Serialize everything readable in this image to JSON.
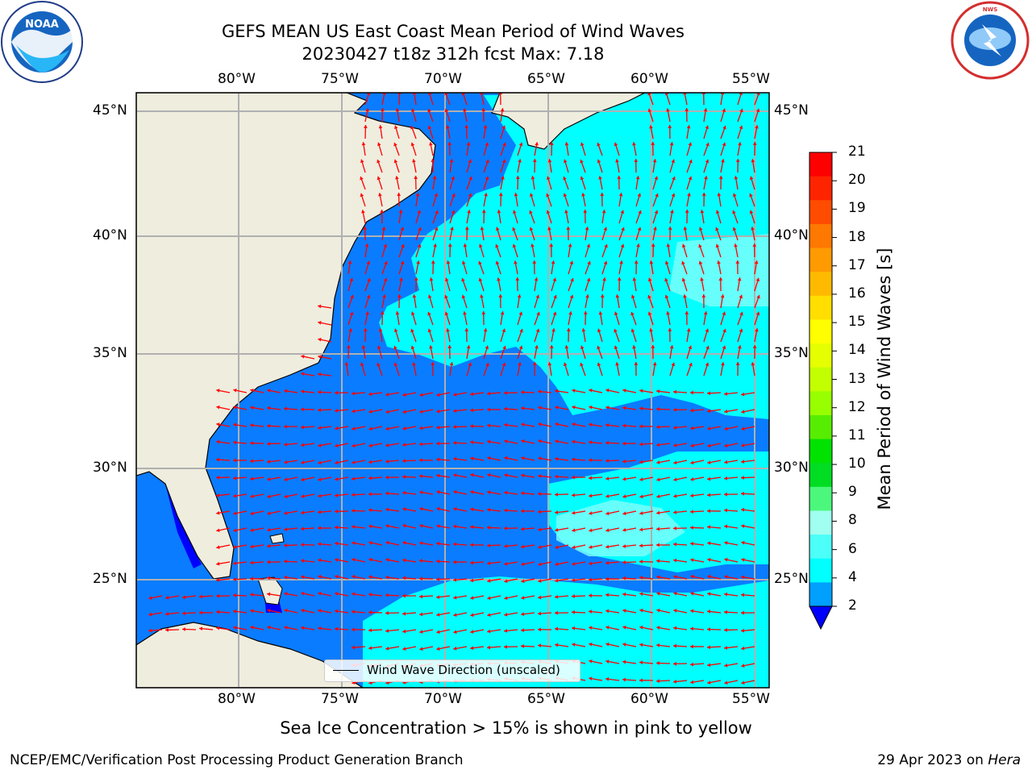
{
  "title": {
    "line1": "GEFS MEAN US East Coast Mean Period of Wind Waves",
    "line2": "20230427 t18z 312h fcst   Max: 7.18"
  },
  "map": {
    "lon_ticks": [
      "80°W",
      "75°W",
      "70°W",
      "65°W",
      "60°W",
      "55°W"
    ],
    "lat_ticks": [
      "45°N",
      "40°N",
      "35°N",
      "30°N",
      "25°N"
    ],
    "land_color": "#efedde",
    "gridline_color": "#b0b0b0",
    "arrow_color": "#ff0000",
    "legend": "Wind Wave Direction (unscaled)"
  },
  "colorbar": {
    "label": "Mean Period of Wind Waves [s]",
    "ticks": [
      "21",
      "20",
      "19",
      "18",
      "17",
      "16",
      "15",
      "14",
      "13",
      "12",
      "11",
      "10",
      "9",
      "8",
      "6",
      "4",
      "2"
    ],
    "colors": [
      "#ff0000",
      "#ff2400",
      "#ff4c00",
      "#ff7800",
      "#ff9a00",
      "#ffba00",
      "#ffde00",
      "#ffff00",
      "#e6ff00",
      "#c3ff00",
      "#98ff00",
      "#57ed00",
      "#00e200",
      "#00dd23",
      "#4cf87c",
      "#a0fff0",
      "#4cfff8",
      "#00ffff",
      "#00a0ff"
    ],
    "extend_color": "#0000ff"
  },
  "notes": {
    "sea_ice": "Sea Ice Concentration > 15% is shown in pink to yellow",
    "footer_left": "NCEP/EMC/Verification Post Processing Product Generation Branch",
    "footer_date": "29 Apr 2023 on ",
    "footer_machine": "Hera"
  },
  "logos": {
    "noaa": "NOAA",
    "nws": "NATIONAL WEATHER SERVICE"
  }
}
